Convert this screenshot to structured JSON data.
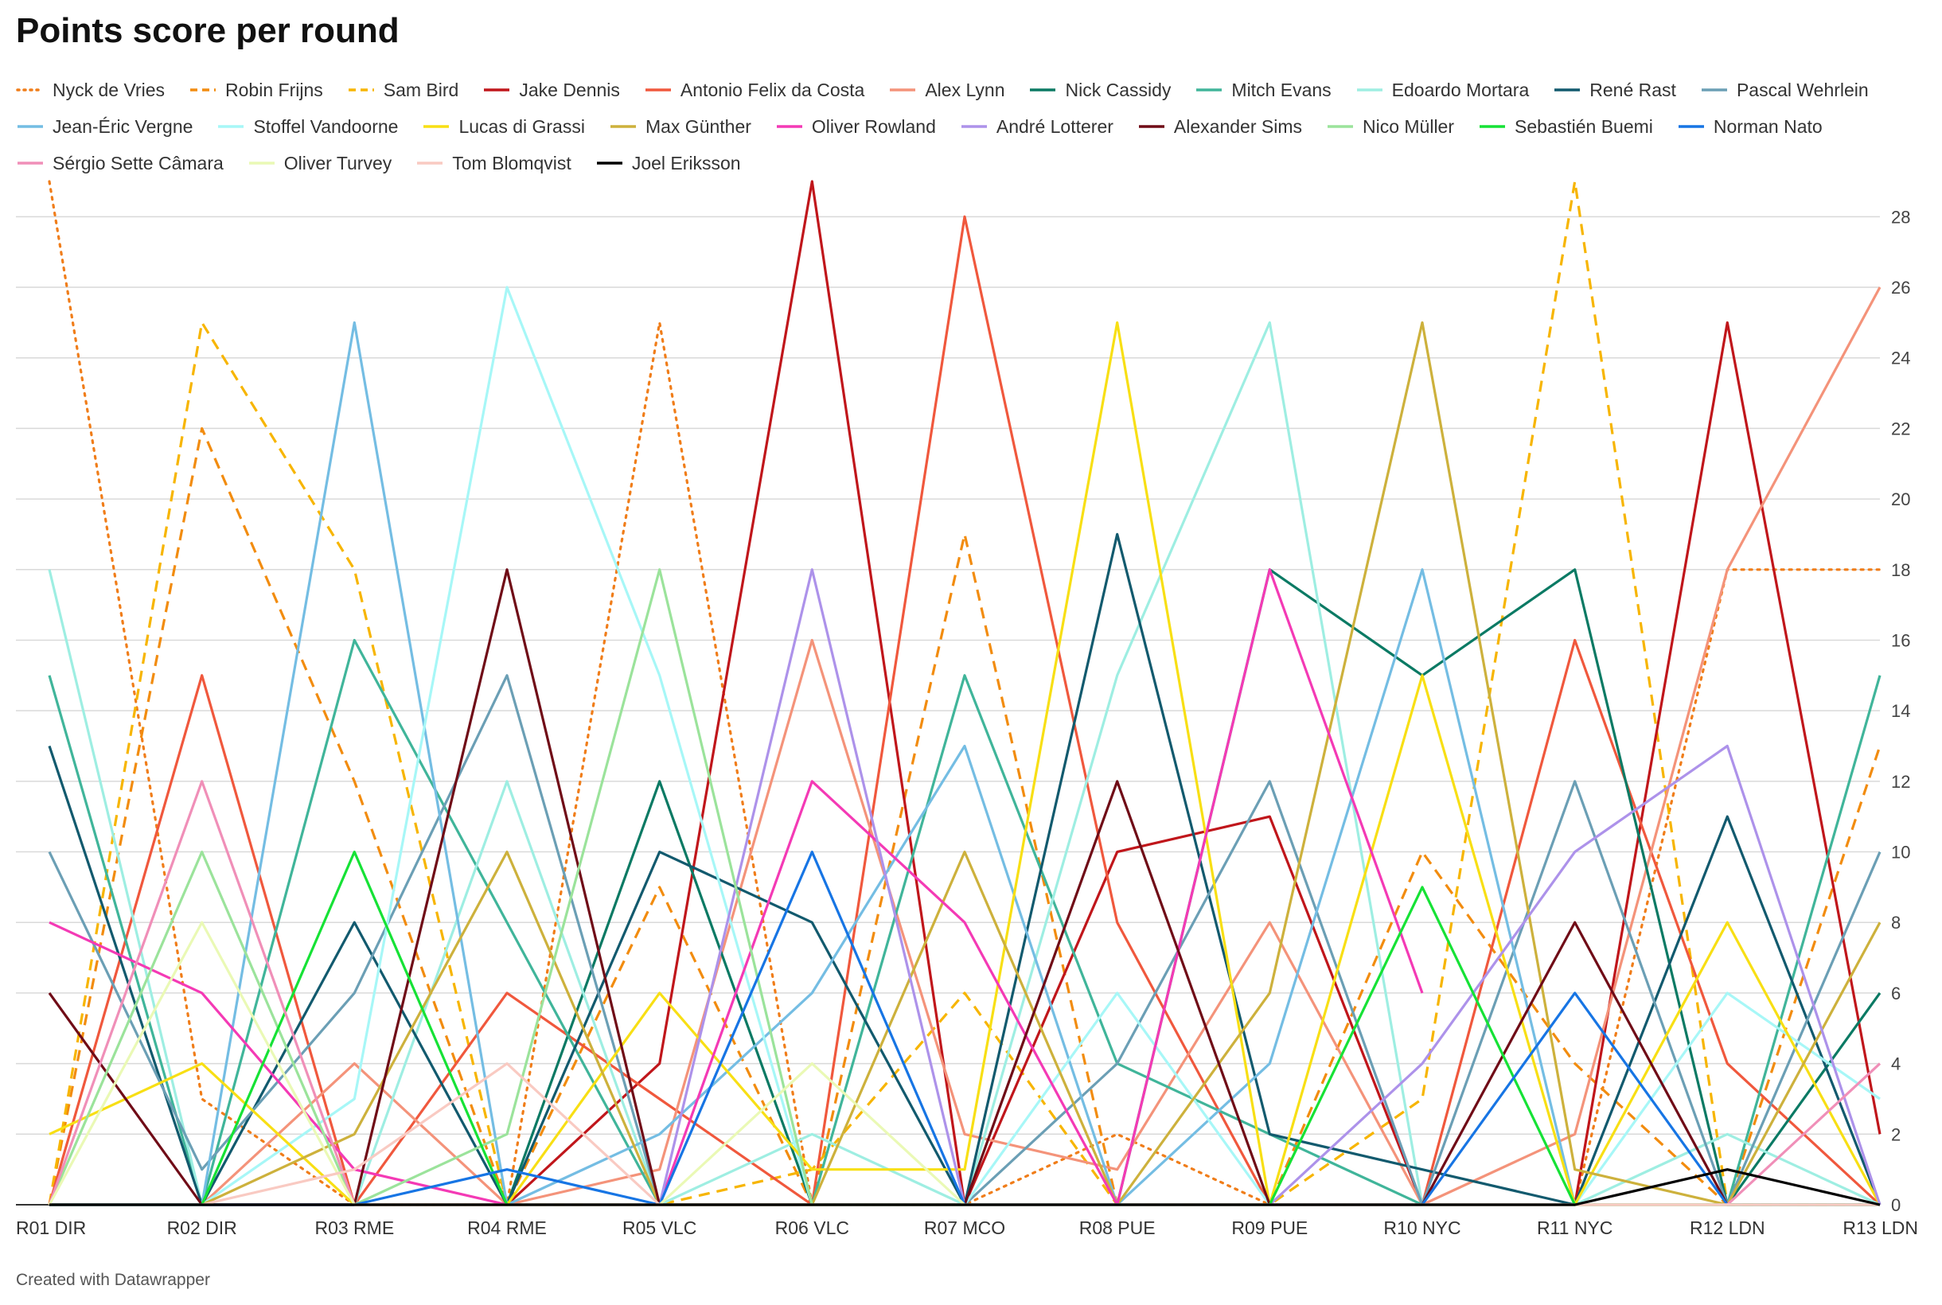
{
  "chart_data": {
    "type": "line",
    "title": "Points score per round",
    "xlabel": "",
    "ylabel": "",
    "ylim": [
      0,
      29
    ],
    "yticks": [
      0,
      2,
      4,
      6,
      8,
      10,
      12,
      14,
      16,
      18,
      20,
      22,
      24,
      26,
      28
    ],
    "grid": true,
    "legend_position": "top",
    "categories": [
      "R01 DIR",
      "R02 DIR",
      "R03 RME",
      "R04 RME",
      "R05 VLC",
      "R06 VLC",
      "R07 MCO",
      "R08 PUE",
      "R09 PUE",
      "R10 NYC",
      "R11 NYC",
      "R12 LDN",
      "R13 LDN"
    ],
    "series": [
      {
        "name": "Nyck de Vries",
        "color": "#f07d19",
        "dash": "dotted",
        "values": [
          29,
          3,
          0,
          0,
          25,
          0,
          0,
          2,
          0,
          0,
          0,
          18,
          18
        ]
      },
      {
        "name": "Robin Frijns",
        "color": "#f28c0f",
        "dash": "dashed",
        "values": [
          0,
          22,
          12,
          0,
          9,
          0,
          19,
          0,
          0,
          10,
          4,
          0,
          13
        ]
      },
      {
        "name": "Sam Bird",
        "color": "#f7b500",
        "dash": "dashed",
        "values": [
          0,
          25,
          18,
          0,
          0,
          1,
          6,
          0,
          0,
          3,
          29,
          0,
          0
        ]
      },
      {
        "name": "Jake Dennis",
        "color": "#c0161b",
        "values": [
          0,
          0,
          0,
          0,
          4,
          29,
          0,
          10,
          11,
          0,
          0,
          25,
          2
        ]
      },
      {
        "name": "Antonio Felix da Costa",
        "color": "#f0583d",
        "values": [
          0,
          15,
          0,
          6,
          3,
          0,
          28,
          8,
          0,
          0,
          16,
          4,
          0
        ]
      },
      {
        "name": "Alex Lynn",
        "color": "#f4937a",
        "values": [
          0,
          0,
          4,
          0,
          1,
          16,
          2,
          1,
          8,
          0,
          2,
          18,
          26
        ]
      },
      {
        "name": "Nick Cassidy",
        "color": "#0b7a64",
        "values": [
          0,
          0,
          0,
          0,
          12,
          0,
          0,
          0,
          18,
          15,
          18,
          0,
          6
        ]
      },
      {
        "name": "Mitch Evans",
        "color": "#40b59a",
        "values": [
          15,
          0,
          16,
          8,
          0,
          0,
          15,
          4,
          2,
          0,
          0,
          0,
          15
        ]
      },
      {
        "name": "Edoardo Mortara",
        "color": "#9eeee2",
        "values": [
          18,
          0,
          0,
          12,
          0,
          2,
          0,
          15,
          25,
          0,
          0,
          2,
          0
        ]
      },
      {
        "name": "René Rast",
        "color": "#125a6e",
        "values": [
          13,
          0,
          8,
          0,
          10,
          8,
          0,
          19,
          2,
          1,
          0,
          11,
          0
        ]
      },
      {
        "name": "Pascal Wehrlein",
        "color": "#6b9fb5",
        "values": [
          10,
          1,
          6,
          15,
          0,
          0,
          0,
          4,
          12,
          0,
          12,
          0,
          10
        ]
      },
      {
        "name": "Jean-Éric Vergne",
        "color": "#74bde3",
        "values": [
          0,
          0,
          25,
          0,
          2,
          6,
          13,
          0,
          4,
          18,
          0,
          0,
          0
        ]
      },
      {
        "name": "Stoffel Vandoorne",
        "color": "#a7f7f7",
        "values": [
          0,
          0,
          3,
          26,
          15,
          0,
          0,
          6,
          0,
          0,
          0,
          6,
          3
        ]
      },
      {
        "name": "Lucas di Grassi",
        "color": "#f8df14",
        "values": [
          2,
          4,
          0,
          0,
          6,
          1,
          1,
          25,
          0,
          15,
          0,
          8,
          0
        ]
      },
      {
        "name": "Max Günther",
        "color": "#cdb13c",
        "values": [
          0,
          0,
          2,
          10,
          0,
          0,
          10,
          0,
          6,
          25,
          1,
          0,
          8
        ]
      },
      {
        "name": "Oliver Rowland",
        "color": "#f43ab5",
        "values": [
          8,
          6,
          1,
          0,
          0,
          12,
          8,
          0,
          18,
          6,
          null,
          null,
          null
        ]
      },
      {
        "name": "André Lotterer",
        "color": "#ad92ea",
        "values": [
          0,
          0,
          0,
          0,
          0,
          18,
          0,
          0,
          0,
          4,
          10,
          13,
          0
        ]
      },
      {
        "name": "Alexander Sims",
        "color": "#700c17",
        "values": [
          6,
          0,
          0,
          18,
          0,
          0,
          0,
          12,
          0,
          0,
          8,
          0,
          0
        ]
      },
      {
        "name": "Nico Müller",
        "color": "#9be39b",
        "values": [
          0,
          10,
          0,
          2,
          18,
          0,
          0,
          0,
          0,
          0,
          0,
          0,
          0
        ]
      },
      {
        "name": "Sebastién Buemi",
        "color": "#16e236",
        "values": [
          0,
          0,
          10,
          0,
          0,
          0,
          0,
          0,
          0,
          9,
          0,
          0,
          0
        ]
      },
      {
        "name": "Norman Nato",
        "color": "#1775e4",
        "values": [
          0,
          0,
          0,
          1,
          0,
          10,
          0,
          0,
          0,
          0,
          6,
          0,
          0
        ]
      },
      {
        "name": "Sérgio Sette Câmara",
        "color": "#f08fb8",
        "values": [
          0,
          12,
          0,
          0,
          0,
          0,
          0,
          0,
          0,
          0,
          0,
          0,
          4
        ]
      },
      {
        "name": "Oliver Turvey",
        "color": "#eaf9b5",
        "values": [
          0,
          8,
          0,
          0,
          0,
          4,
          0,
          0,
          0,
          0,
          0,
          0,
          0
        ]
      },
      {
        "name": "Tom Blomqvist",
        "color": "#f9cac2",
        "values": [
          0,
          0,
          1,
          4,
          0,
          0,
          0,
          0,
          0,
          0,
          0,
          0,
          0
        ]
      },
      {
        "name": "Joel Eriksson",
        "color": "#000000",
        "values": [
          0,
          0,
          0,
          0,
          0,
          0,
          0,
          0,
          0,
          0,
          0,
          1,
          0
        ]
      }
    ]
  },
  "footer": "Created with Datawrapper"
}
